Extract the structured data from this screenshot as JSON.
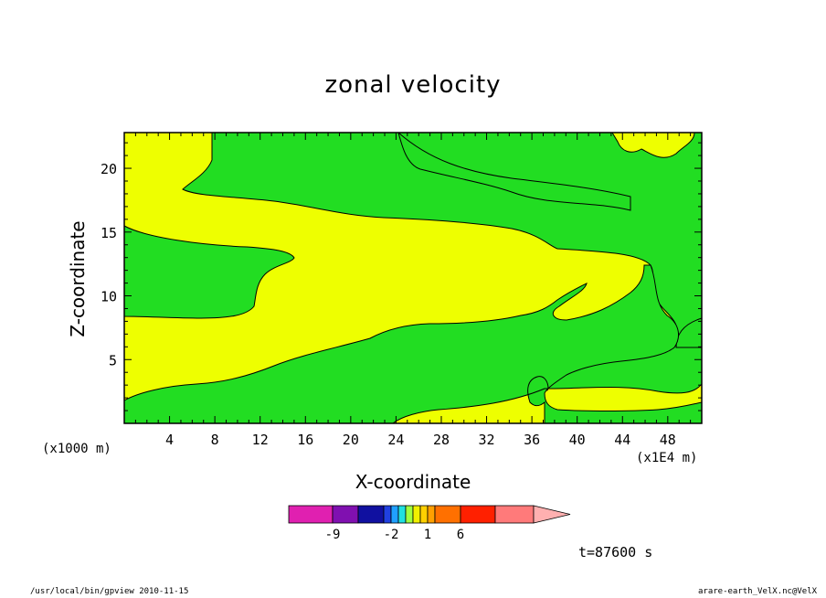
{
  "chart_data": {
    "type": "heatmap",
    "title": "zonal velocity",
    "xlabel": "X-coordinate",
    "ylabel": "Z-coordinate",
    "x_unit_label_left": "(x1000 m)",
    "x_unit_label_right": "(x1E4 m)",
    "xlim": [
      0,
      51
    ],
    "ylim": [
      0,
      22.8
    ],
    "x_ticks": [
      4,
      8,
      12,
      16,
      20,
      24,
      28,
      32,
      36,
      40,
      44,
      48
    ],
    "y_ticks": [
      5,
      10,
      15,
      20
    ],
    "time_label": "t=87600 s",
    "colorbar": {
      "colors": [
        "#e020b0",
        "#8010b0",
        "#1010a0",
        "#2040e0",
        "#20a0ff",
        "#20e0e0",
        "#a0ff40",
        "#f0f000",
        "#ffd000",
        "#ffa000",
        "#ff7000",
        "#ff2000",
        "#ff7a7a",
        "#ffb0b0"
      ],
      "tick_labels": [
        "-9",
        "-2",
        "1",
        "6"
      ]
    },
    "regions": [
      {
        "name": "positive",
        "color": "#eeff00"
      },
      {
        "name": "near-zero",
        "color": "#22dd22"
      }
    ]
  },
  "footer": {
    "left": "/usr/local/bin/gpview  2010-11-15",
    "right": "arare-earth_VelX.nc@VelX"
  }
}
